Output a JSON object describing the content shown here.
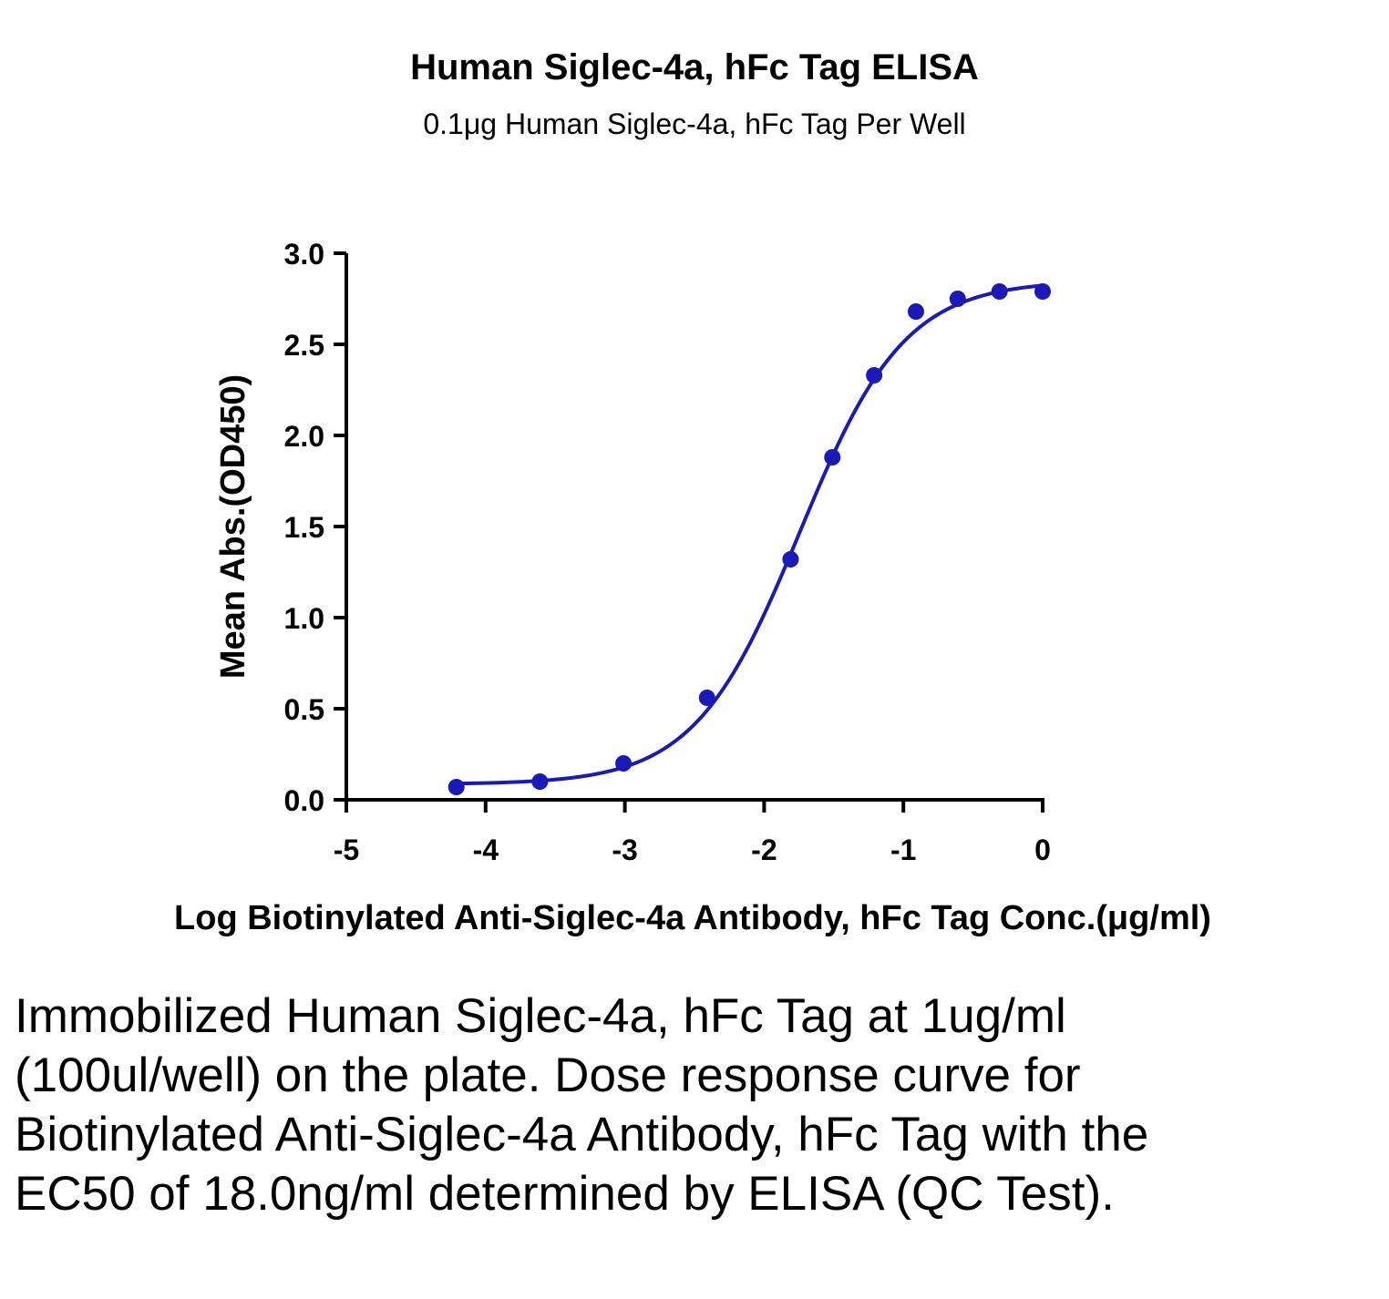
{
  "title": "Human Siglec-4a, hFc Tag ELISA",
  "subtitle": "0.1μg Human Siglec-4a, hFc Tag Per Well",
  "caption": "Immobilized Human Siglec-4a, hFc Tag at 1ug/ml (100ul/well) on the plate. Dose response curve for Biotinylated Anti-Siglec-4a Antibody, hFc Tag with the EC50 of 18.0ng/ml determined by ELISA (QC Test).",
  "colors": {
    "series": "#1a1ab8",
    "axis": "#000000"
  },
  "chart_data": {
    "type": "scatter",
    "title": "Human Siglec-4a, hFc Tag ELISA",
    "subtitle": "0.1μg Human Siglec-4a, hFc Tag Per Well",
    "xlabel": "Log Biotinylated Anti-Siglec-4a Antibody, hFc Tag Conc.(μg/ml)",
    "ylabel": "Mean Abs.(OD450)",
    "xlim": [
      -5,
      0
    ],
    "ylim": [
      0,
      3.0
    ],
    "xticks": [
      -5,
      -4,
      -3,
      -2,
      -1,
      0
    ],
    "xtick_labels": [
      "-5",
      "-4",
      "-3",
      "-2",
      "-1",
      "0"
    ],
    "yticks": [
      0,
      0.5,
      1.0,
      1.5,
      2.0,
      2.5,
      3.0
    ],
    "ytick_labels": [
      "0.0",
      "0.5",
      "1.0",
      "1.5",
      "2.0",
      "2.5",
      "3.0"
    ],
    "grid": false,
    "legend": "none",
    "series": [
      {
        "x": [
          -4.21,
          -3.61,
          -3.01,
          -2.41,
          -1.81,
          -1.51,
          -1.21,
          -0.91,
          -0.61,
          -0.31,
          0.0
        ],
        "y": [
          0.07,
          0.1,
          0.2,
          0.56,
          1.32,
          1.88,
          2.33,
          2.68,
          2.75,
          2.79,
          2.79
        ],
        "fit": "four-parameter logistic",
        "fit_range": [
          -4.21,
          0.0
        ]
      }
    ],
    "ec50": "18.0ng/ml"
  }
}
